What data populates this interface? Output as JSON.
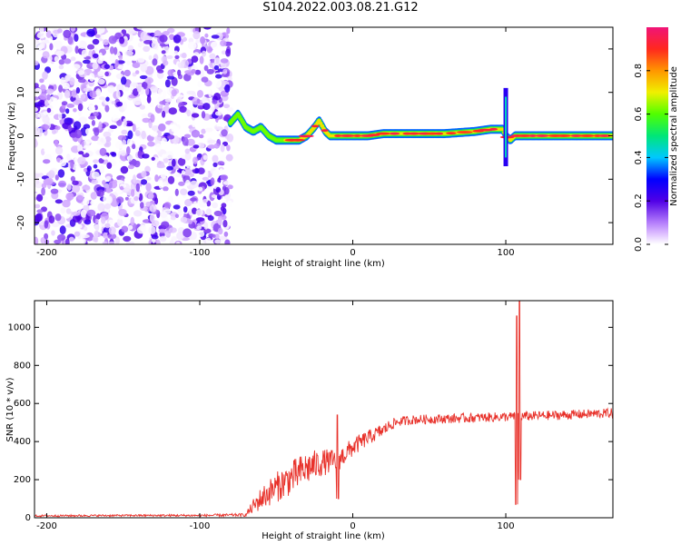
{
  "figure": {
    "title": "S104.2022.003.08.21.G12"
  },
  "chart_data": [
    {
      "type": "heatmap",
      "xlabel": "Height of straight line (km)",
      "ylabel": "Frequency (Hz)",
      "xlim": [
        -208,
        170
      ],
      "ylim": [
        -25,
        25
      ],
      "xticks": [
        -200,
        -100,
        0,
        100
      ],
      "yticks": [
        -20,
        -10,
        0,
        10,
        20
      ],
      "xtick_labels": [
        "-200",
        "-100",
        "0",
        "100"
      ],
      "ytick_labels": [
        "-20",
        "-10",
        "0",
        "10",
        "20"
      ],
      "colormap": "rainbow",
      "colorbar": {
        "label": "Normalized spectral amplitude",
        "range": [
          0,
          1
        ],
        "ticks": [
          0.0,
          0.2,
          0.4,
          0.6,
          0.8
        ],
        "tick_labels": [
          "0.0",
          "0.2",
          "0.4",
          "0.6",
          "0.8"
        ]
      },
      "noise_region": {
        "x": [
          -208,
          -80
        ],
        "y": [
          -25,
          25
        ],
        "amplitude_range": [
          0.0,
          0.25
        ]
      },
      "signal_trace": {
        "description_values": "frequency of peak amplitude vs height",
        "x": [
          -80,
          -75,
          -70,
          -65,
          -60,
          -55,
          -50,
          -45,
          -40,
          -35,
          -30,
          -25,
          -22,
          -18,
          -15,
          -10,
          0,
          10,
          20,
          40,
          60,
          80,
          90,
          98,
          100,
          103,
          106,
          110,
          120,
          140,
          160,
          170
        ],
        "y": [
          3,
          5,
          2,
          1,
          2,
          0,
          -1,
          -1,
          -1,
          -1,
          0,
          2,
          3.5,
          1,
          0,
          0,
          0,
          0,
          0.5,
          0.5,
          0.5,
          1,
          1.5,
          1.5,
          0,
          -1,
          0,
          0,
          0,
          0,
          0,
          0
        ]
      },
      "spikes": [
        {
          "x": 100,
          "y_range": [
            -7,
            11
          ]
        }
      ]
    },
    {
      "type": "line",
      "xlabel": "Height of straight line (km)",
      "ylabel": "SNR (10 * v/v)",
      "xlim": [
        -208,
        170
      ],
      "ylim": [
        0,
        1140
      ],
      "xticks": [
        -200,
        -100,
        0,
        100
      ],
      "yticks": [
        0,
        200,
        400,
        600,
        800,
        1000
      ],
      "xtick_labels": [
        "-200",
        "-100",
        "0",
        "100"
      ],
      "ytick_labels": [
        "0",
        "200",
        "400",
        "600",
        "800",
        "1000"
      ],
      "color": "#e8312a",
      "series": [
        {
          "trend_x": [
            -208,
            -150,
            -100,
            -70,
            -65,
            -60,
            -50,
            -40,
            -30,
            -20,
            -10,
            0,
            10,
            20,
            25,
            30,
            40,
            60,
            80,
            100,
            120,
            140,
            170
          ],
          "trend_y": [
            10,
            12,
            12,
            15,
            60,
            100,
            160,
            210,
            260,
            290,
            300,
            370,
            420,
            460,
            490,
            505,
            515,
            520,
            525,
            530,
            535,
            540,
            550
          ],
          "noise_amplitude": [
            5,
            5,
            6,
            8,
            40,
            60,
            80,
            90,
            90,
            70,
            60,
            50,
            40,
            35,
            30,
            25,
            25,
            25,
            25,
            25,
            25,
            25,
            25
          ]
        }
      ],
      "spikes": [
        {
          "x": -10,
          "y_max": 540,
          "y_min": 100
        },
        {
          "x": 107,
          "y_max": 1060,
          "y_min": 70
        },
        {
          "x": 109,
          "y_max": 1140,
          "y_min": 200
        }
      ]
    }
  ]
}
